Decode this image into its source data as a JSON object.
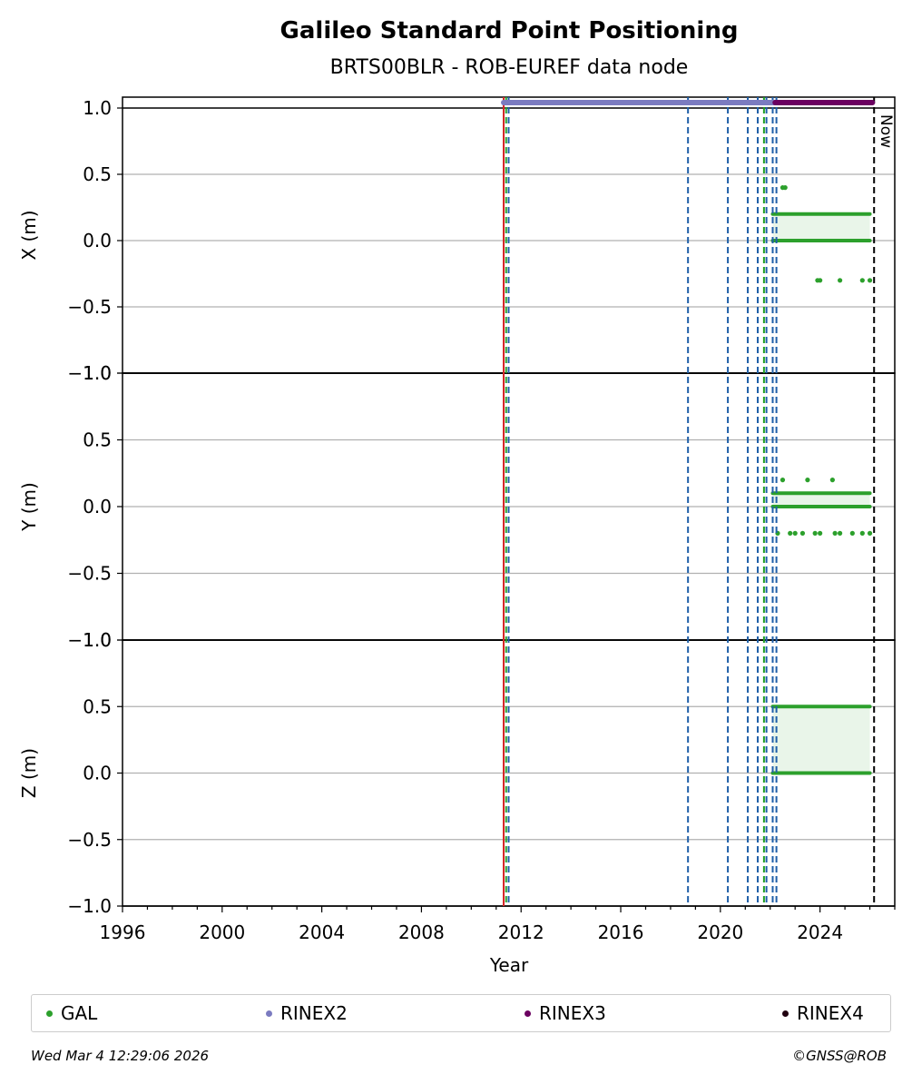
{
  "chart_data": {
    "type": "scatter",
    "title": "Galileo Standard Point Positioning",
    "subtitle": "BRTS00BLR - ROB-EUREF data node",
    "xlabel": "Year",
    "xlim": [
      1996,
      2027
    ],
    "x_ticks": [
      1996,
      2000,
      2004,
      2008,
      2012,
      2016,
      2020,
      2024
    ],
    "now_label": "Now",
    "now_x": 2026.17,
    "panels": [
      {
        "name": "X",
        "ylabel": "X (m)",
        "ylim": [
          -1.0,
          1.0
        ],
        "y_ticks": [
          -1.0,
          -0.5,
          0.0,
          0.5,
          1.0
        ],
        "gal_levels": [
          0.2,
          0.0
        ],
        "gal_outliers": [
          [
            2022.5,
            0.4
          ],
          [
            2022.6,
            0.4
          ],
          [
            2023.9,
            -0.3
          ],
          [
            2024.0,
            -0.3
          ],
          [
            2024.8,
            -0.3
          ],
          [
            2025.7,
            -0.3
          ],
          [
            2026.0,
            -0.3
          ]
        ]
      },
      {
        "name": "Y",
        "ylabel": "Y (m)",
        "ylim": [
          -1.0,
          1.0
        ],
        "y_ticks": [
          -1.0,
          -0.5,
          0.0,
          0.5,
          1.0
        ],
        "gal_levels": [
          0.1,
          0.0
        ],
        "gal_outliers": [
          [
            2022.3,
            -0.2
          ],
          [
            2022.5,
            0.2
          ],
          [
            2022.8,
            -0.2
          ],
          [
            2023.0,
            -0.2
          ],
          [
            2023.3,
            -0.2
          ],
          [
            2023.5,
            0.2
          ],
          [
            2023.8,
            -0.2
          ],
          [
            2024.0,
            -0.2
          ],
          [
            2024.5,
            0.2
          ],
          [
            2024.6,
            -0.2
          ],
          [
            2024.8,
            -0.2
          ],
          [
            2025.3,
            -0.2
          ],
          [
            2025.7,
            -0.2
          ],
          [
            2026.0,
            -0.2
          ]
        ]
      },
      {
        "name": "Z",
        "ylabel": "Z (m)",
        "ylim": [
          -1.0,
          1.0
        ],
        "y_ticks": [
          -1.0,
          -0.5,
          0.0,
          0.5,
          1.0
        ],
        "gal_levels": [
          0.5,
          0.0
        ],
        "gal_outliers": []
      }
    ],
    "gal_range": [
      2022.1,
      2026.0
    ],
    "rinex2_range": [
      2011.3,
      2022.2
    ],
    "rinex3_range": [
      2022.2,
      2026.1
    ],
    "event_lines": [
      {
        "x": 2011.3,
        "color": "#d62728",
        "style": "solid"
      },
      {
        "x": 2011.4,
        "color": "#2ca02c",
        "style": "dashed"
      },
      {
        "x": 2011.5,
        "color": "#1f5fa8",
        "style": "dashed"
      },
      {
        "x": 2018.7,
        "color": "#1f5fa8",
        "style": "dashed"
      },
      {
        "x": 2020.3,
        "color": "#1f5fa8",
        "style": "dashed"
      },
      {
        "x": 2021.1,
        "color": "#1f5fa8",
        "style": "dashed"
      },
      {
        "x": 2021.5,
        "color": "#1f5fa8",
        "style": "dashed"
      },
      {
        "x": 2021.75,
        "color": "#1f9f1f",
        "style": "dashed"
      },
      {
        "x": 2021.85,
        "color": "#1f5fa8",
        "style": "dashed"
      },
      {
        "x": 2022.1,
        "color": "#1f5fa8",
        "style": "dashed"
      },
      {
        "x": 2022.25,
        "color": "#1f5fa8",
        "style": "dashed"
      }
    ],
    "legend": [
      {
        "label": "GAL",
        "color": "#2ca02c"
      },
      {
        "label": "RINEX2",
        "color": "#7b7bc0"
      },
      {
        "label": "RINEX3",
        "color": "#6b0060"
      },
      {
        "label": "RINEX4",
        "color": "#200010"
      }
    ]
  },
  "footer": {
    "timestamp": "Wed Mar  4 12:29:06 2026",
    "copyright": "©GNSS@ROB"
  }
}
